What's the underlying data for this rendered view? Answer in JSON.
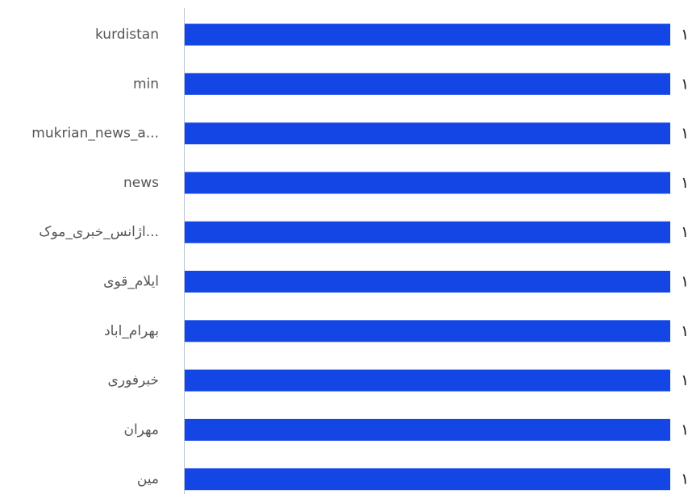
{
  "chart_data": {
    "type": "bar",
    "orientation": "horizontal",
    "categories": [
      "kurdistan",
      "min",
      "mukrian_news_a...",
      "news",
      "اژانس_خبری_موک...",
      "ایلام_قوی",
      "بهرام_اباد",
      "خبرفوری",
      "مهران",
      "مین"
    ],
    "values": [
      1,
      1,
      1,
      1,
      1,
      1,
      1,
      1,
      1,
      1
    ],
    "value_labels": [
      "١",
      "١",
      "١",
      "١",
      "١",
      "١",
      "١",
      "١",
      "١",
      "١"
    ],
    "xlim": [
      0,
      1
    ],
    "grid": false,
    "legend": "none"
  },
  "colors": {
    "bar": "#1446e6",
    "axis": "#b8c4d6",
    "label": "#555555",
    "value": "#222222"
  }
}
